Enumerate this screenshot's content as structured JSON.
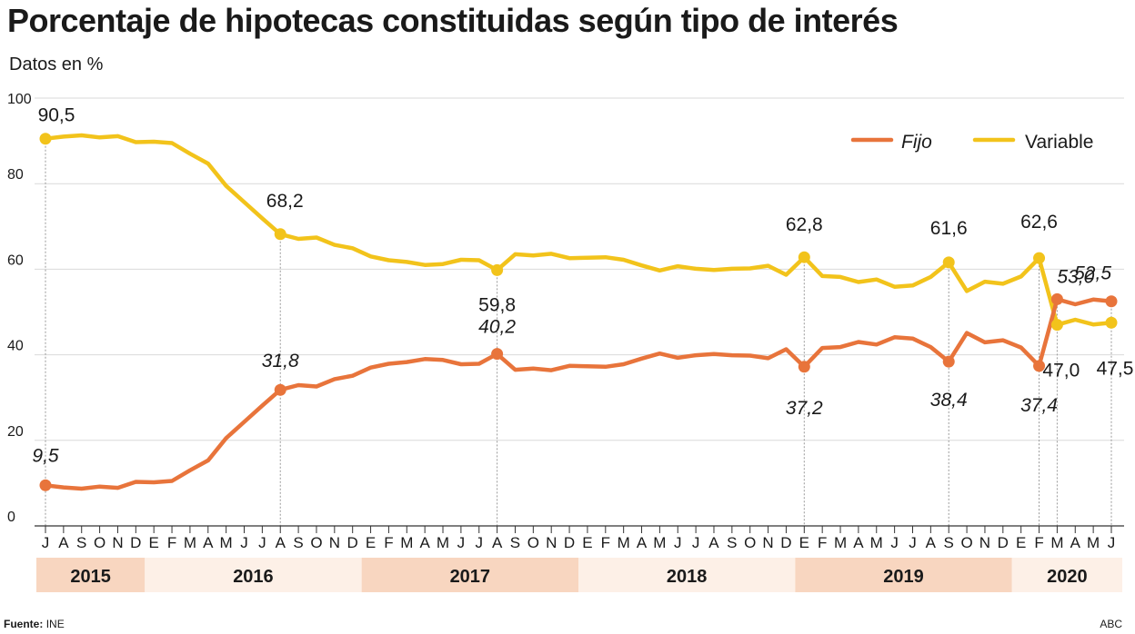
{
  "title": "Porcentaje de hipotecas constituidas según tipo de interés",
  "subtitle": "Datos en %",
  "source_label": "Fuente:",
  "source_value": "INE",
  "credit": "ABC",
  "colors": {
    "fijo": "#e8743b",
    "variable": "#f2c31b",
    "year_band_dark": "#f8d6c0",
    "year_band_light": "#fdf0e7",
    "grid": "#d9d9d9"
  },
  "chart_data": {
    "type": "line",
    "title": "Porcentaje de hipotecas constituidas según tipo de interés",
    "subtitle": "Datos en %",
    "ylim": [
      0,
      100
    ],
    "yticks": [
      0,
      20,
      40,
      60,
      80,
      100
    ],
    "grid": true,
    "legend_position": "top-right",
    "x": [
      "2015-07",
      "2015-08",
      "2015-09",
      "2015-10",
      "2015-11",
      "2015-12",
      "2016-01",
      "2016-02",
      "2016-03",
      "2016-04",
      "2016-05",
      "2016-06",
      "2016-07",
      "2016-08",
      "2016-09",
      "2016-10",
      "2016-11",
      "2016-12",
      "2017-01",
      "2017-02",
      "2017-03",
      "2017-04",
      "2017-05",
      "2017-06",
      "2017-07",
      "2017-08",
      "2017-09",
      "2017-10",
      "2017-11",
      "2017-12",
      "2018-01",
      "2018-02",
      "2018-03",
      "2018-04",
      "2018-05",
      "2018-06",
      "2018-07",
      "2018-08",
      "2018-09",
      "2018-10",
      "2018-11",
      "2018-12",
      "2019-01",
      "2019-02",
      "2019-03",
      "2019-04",
      "2019-05",
      "2019-06",
      "2019-07",
      "2019-08",
      "2019-09",
      "2019-10",
      "2019-11",
      "2019-12",
      "2020-01",
      "2020-02",
      "2020-03",
      "2020-04",
      "2020-05",
      "2020-06"
    ],
    "month_labels": [
      "J",
      "A",
      "S",
      "O",
      "N",
      "D",
      "E",
      "F",
      "M",
      "A",
      "M",
      "J",
      "J",
      "A",
      "S",
      "O",
      "N",
      "D",
      "E",
      "F",
      "M",
      "A",
      "M",
      "J",
      "J",
      "A",
      "S",
      "O",
      "N",
      "D",
      "E",
      "F",
      "M",
      "A",
      "M",
      "J",
      "J",
      "A",
      "S",
      "O",
      "N",
      "D",
      "E",
      "F",
      "M",
      "A",
      "M",
      "J",
      "J",
      "A",
      "S",
      "O",
      "N",
      "D",
      "E",
      "F",
      "M",
      "A",
      "M",
      "J"
    ],
    "years": [
      {
        "label": "2015",
        "start": 0,
        "end": 5
      },
      {
        "label": "2016",
        "start": 6,
        "end": 17
      },
      {
        "label": "2017",
        "start": 18,
        "end": 29
      },
      {
        "label": "2018",
        "start": 30,
        "end": 41
      },
      {
        "label": "2019",
        "start": 42,
        "end": 53
      },
      {
        "label": "2020",
        "start": 54,
        "end": 59
      }
    ],
    "series": [
      {
        "name": "Fijo",
        "values": [
          9.5,
          9.0,
          8.7,
          9.2,
          8.9,
          10.3,
          10.2,
          10.5,
          13.0,
          15.3,
          20.5,
          24.3,
          28.1,
          31.8,
          32.9,
          32.6,
          34.3,
          35.1,
          37.0,
          37.9,
          38.3,
          39.0,
          38.8,
          37.8,
          37.9,
          40.2,
          36.5,
          36.8,
          36.4,
          37.4,
          37.3,
          37.2,
          37.8,
          39.1,
          40.3,
          39.3,
          39.9,
          40.2,
          39.9,
          39.8,
          39.2,
          41.3,
          37.2,
          41.6,
          41.8,
          43.0,
          42.4,
          44.1,
          43.8,
          41.8,
          38.4,
          45.1,
          42.9,
          43.4,
          41.7,
          37.4,
          53.0,
          51.8,
          52.9,
          52.5
        ]
      },
      {
        "name": "Variable",
        "values": [
          90.5,
          91.0,
          91.3,
          90.8,
          91.1,
          89.7,
          89.8,
          89.5,
          87.0,
          84.7,
          79.5,
          75.7,
          71.9,
          68.2,
          67.1,
          67.4,
          65.7,
          64.9,
          63.0,
          62.1,
          61.7,
          61.0,
          61.2,
          62.2,
          62.1,
          59.8,
          63.5,
          63.2,
          63.6,
          62.6,
          62.7,
          62.8,
          62.2,
          60.9,
          59.7,
          60.7,
          60.1,
          59.8,
          60.1,
          60.2,
          60.8,
          58.7,
          62.8,
          58.4,
          58.2,
          57.0,
          57.6,
          55.9,
          56.2,
          58.2,
          61.6,
          54.9,
          57.1,
          56.6,
          58.3,
          62.6,
          47.0,
          48.2,
          47.1,
          47.5
        ]
      }
    ],
    "annotations": [
      {
        "series": "Fijo",
        "index": 0,
        "text": "9,5"
      },
      {
        "series": "Fijo",
        "index": 13,
        "text": "31,8"
      },
      {
        "series": "Fijo",
        "index": 25,
        "text": "40,2"
      },
      {
        "series": "Fijo",
        "index": 42,
        "text": "37,2"
      },
      {
        "series": "Fijo",
        "index": 50,
        "text": "38,4"
      },
      {
        "series": "Fijo",
        "index": 55,
        "text": "37,4"
      },
      {
        "series": "Fijo",
        "index": 56,
        "text": "53,0"
      },
      {
        "series": "Fijo",
        "index": 59,
        "text": "52,5"
      },
      {
        "series": "Variable",
        "index": 0,
        "text": "90,5"
      },
      {
        "series": "Variable",
        "index": 13,
        "text": "68,2"
      },
      {
        "series": "Variable",
        "index": 25,
        "text": "59,8"
      },
      {
        "series": "Variable",
        "index": 42,
        "text": "62,8"
      },
      {
        "series": "Variable",
        "index": 50,
        "text": "61,6"
      },
      {
        "series": "Variable",
        "index": 55,
        "text": "62,6"
      },
      {
        "series": "Variable",
        "index": 56,
        "text": "47,0"
      },
      {
        "series": "Variable",
        "index": 59,
        "text": "47,5"
      }
    ]
  }
}
